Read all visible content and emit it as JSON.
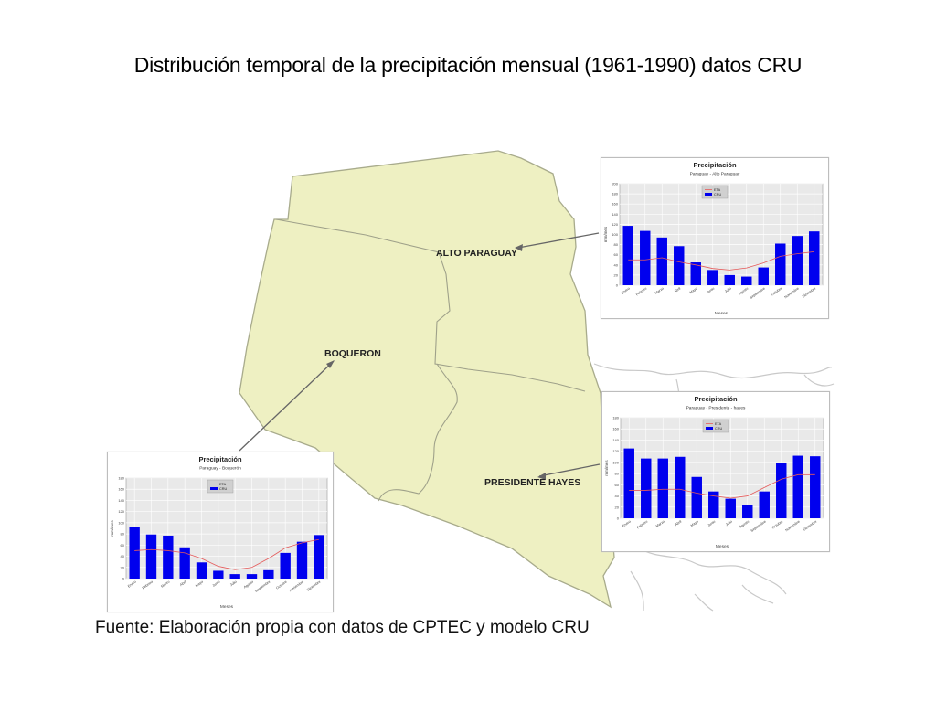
{
  "title": "Distribución temporal de la precipitación mensual (1961-1990) datos CRU",
  "source": "Fuente: Elaboración propia con datos de CPTEC y modelo CRU",
  "colors": {
    "map_fill": "#eef0c2",
    "map_border": "#a8ab8c",
    "bar": "#0000ee",
    "eta_line": "#e55a5a",
    "plot_bg": "#e9e9e9"
  },
  "map": {
    "regions": [
      {
        "id": "alto",
        "label": "ALTO PARAGUAY"
      },
      {
        "id": "boqueron",
        "label": "BOQUERON"
      },
      {
        "id": "hayes",
        "label": "PRESIDENTE HAYES"
      }
    ]
  },
  "chart_data": [
    {
      "id": "alto",
      "type": "bar",
      "title": "Precipitación",
      "subtitle": "Paraguay - Alto Paraguay",
      "xlabel": "Meses",
      "ylabel": "mm/mes",
      "legend": [
        "ETA",
        "CRU"
      ],
      "legend_position": "top-center",
      "grid": true,
      "categories": [
        "Enero",
        "Febrero",
        "Marzo",
        "Abril",
        "Mayo",
        "Junio",
        "Julio",
        "Agosto",
        "Septiembre",
        "Octubre",
        "Noviembre",
        "Diciembre"
      ],
      "ylim": [
        0,
        200
      ],
      "yticks": [
        0,
        20,
        40,
        60,
        80,
        100,
        120,
        140,
        160,
        180,
        200
      ],
      "series": [
        {
          "name": "CRU",
          "kind": "bar",
          "values": [
            117,
            107,
            94,
            77,
            45,
            30,
            20,
            17,
            35,
            82,
            97,
            106
          ]
        },
        {
          "name": "ETA",
          "kind": "line",
          "values": [
            50,
            50,
            54,
            46,
            40,
            33,
            30,
            34,
            44,
            57,
            62,
            66
          ]
        }
      ]
    },
    {
      "id": "boqueron",
      "type": "bar",
      "title": "Precipitación",
      "subtitle": "Paraguay - Boquerón",
      "xlabel": "Meses",
      "ylabel": "mm/mes",
      "legend": [
        "ETA",
        "CRU"
      ],
      "legend_position": "top-center",
      "grid": true,
      "categories": [
        "Enero",
        "Febrero",
        "Marzo",
        "Abril",
        "Mayo",
        "Junio",
        "Julio",
        "Agosto",
        "Septiembre",
        "Octubre",
        "Noviembre",
        "Diciembre"
      ],
      "ylim": [
        0,
        180
      ],
      "yticks": [
        0,
        20,
        40,
        60,
        80,
        100,
        120,
        140,
        160,
        180
      ],
      "series": [
        {
          "name": "CRU",
          "kind": "bar",
          "values": [
            92,
            79,
            77,
            56,
            29,
            14,
            8,
            8,
            15,
            46,
            66,
            78
          ]
        },
        {
          "name": "ETA",
          "kind": "line",
          "values": [
            50,
            52,
            50,
            46,
            36,
            22,
            16,
            20,
            36,
            55,
            64,
            70
          ]
        }
      ]
    },
    {
      "id": "hayes",
      "type": "bar",
      "title": "Precipitación",
      "subtitle": "Paraguay - Presidente - hayes",
      "xlabel": "Meses",
      "ylabel": "mm/mes",
      "legend": [
        "ETA",
        "CRU"
      ],
      "legend_position": "top-center",
      "grid": true,
      "categories": [
        "Enero",
        "Febrero",
        "Marzo",
        "Abril",
        "Mayo",
        "Junio",
        "Julio",
        "Agosto",
        "Septiembre",
        "Octubre",
        "Noviembre",
        "Diciembre"
      ],
      "ylim": [
        0,
        180
      ],
      "yticks": [
        0,
        20,
        40,
        60,
        80,
        100,
        120,
        140,
        160,
        180
      ],
      "series": [
        {
          "name": "CRU",
          "kind": "bar",
          "values": [
            125,
            107,
            107,
            110,
            74,
            48,
            35,
            24,
            48,
            99,
            112,
            111
          ]
        },
        {
          "name": "ETA",
          "kind": "line",
          "values": [
            50,
            50,
            52,
            52,
            45,
            40,
            36,
            40,
            55,
            70,
            78,
            78
          ]
        }
      ]
    }
  ]
}
